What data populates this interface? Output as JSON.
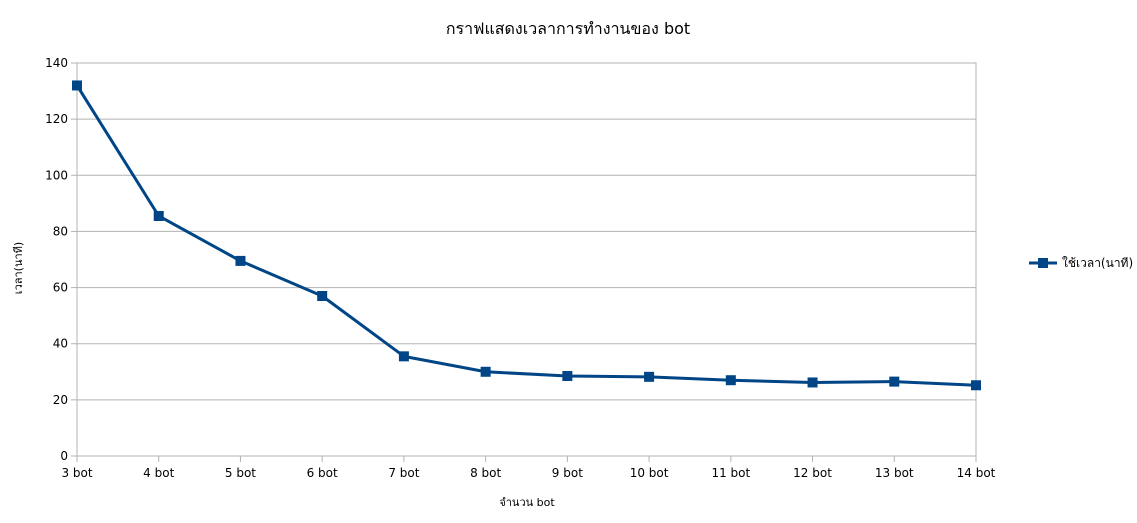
{
  "chart_data": {
    "type": "line",
    "title": "กราฟแสดงเวลาการทำงานของ bot",
    "xlabel": "จำนวน bot",
    "ylabel": "เวลา(นาที)",
    "categories": [
      "3 bot",
      "4 bot",
      "5 bot",
      "6 bot",
      "7 bot",
      "8 bot",
      "9 bot",
      "10 bot",
      "11 bot",
      "12 bot",
      "13 bot",
      "14 bot"
    ],
    "series": [
      {
        "name": "ใช้เวลา(นาที)",
        "color": "#004586",
        "marker": "square",
        "values": [
          132,
          85.5,
          69.5,
          57,
          35.5,
          30,
          28.5,
          28.2,
          27,
          26.2,
          26.5,
          25.2
        ]
      }
    ],
    "ylim": [
      0,
      140
    ],
    "yticks": [
      0,
      20,
      40,
      60,
      80,
      100,
      120,
      140
    ],
    "grid": true,
    "legend_position": "right"
  },
  "colors": {
    "grid": "#b3b3b3",
    "axis": "#b3b3b3",
    "series": "#004586"
  }
}
